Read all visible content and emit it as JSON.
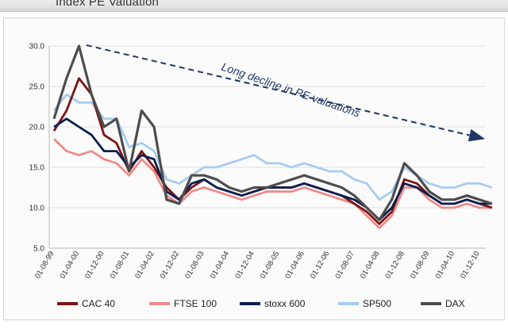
{
  "page_title": "Index PE Valuation",
  "chart_data": {
    "type": "line",
    "title": "Index PE Valuation",
    "xlabel": "",
    "ylabel": "",
    "ylim": [
      5,
      30
    ],
    "yticks": [
      "30.0",
      "25.0",
      "20.0",
      "15.0",
      "10.0",
      "5.0"
    ],
    "x_tick_labels": [
      "01-08-99",
      "01-04-00",
      "01-12-00",
      "01-08-01",
      "01-04-02",
      "01-12-02",
      "01-08-03",
      "01-04-04",
      "01-12-04",
      "01-08-05",
      "01-04-06",
      "01-12-06",
      "01-08-07",
      "01-04-08",
      "01-12-08",
      "01-08-09",
      "01-04-10",
      "01-12-10"
    ],
    "x": [
      0,
      0.5,
      1,
      1.5,
      2,
      2.5,
      3,
      3.5,
      4,
      4.5,
      5,
      5.5,
      6,
      6.5,
      7,
      7.5,
      8,
      8.5,
      9,
      9.5,
      10,
      10.5,
      11,
      11.5,
      12,
      12.5,
      13,
      13.5,
      14,
      14.5,
      15,
      15.5,
      16,
      16.5,
      17,
      17.5
    ],
    "grid": true,
    "legend_position": "bottom",
    "annotation": "Long decline in PE valuations",
    "series": [
      {
        "name": "CAC 40",
        "color": "#7b1416",
        "values": [
          19.5,
          22,
          26,
          24,
          19,
          18,
          14.5,
          17,
          15,
          12.5,
          11,
          12.5,
          13.5,
          12.5,
          12,
          11.5,
          12,
          12.5,
          12.5,
          12.5,
          13,
          12.5,
          12,
          11.5,
          10.5,
          9.5,
          8,
          9.5,
          13.5,
          13,
          11.5,
          10.5,
          10.5,
          11,
          10.5,
          10
        ]
      },
      {
        "name": "FTSE 100",
        "color": "#f08a8a",
        "values": [
          18.5,
          17,
          16.5,
          17,
          16,
          15.5,
          14,
          16,
          14.5,
          11.5,
          10.5,
          12,
          12.5,
          12,
          11.5,
          11,
          11.5,
          12,
          12,
          12,
          12.5,
          12,
          11.5,
          11,
          10.5,
          9,
          7.5,
          9,
          12.5,
          12.5,
          11,
          10,
          10,
          10.5,
          10,
          10
        ]
      },
      {
        "name": "stoxx 600",
        "color": "#0b1f4f",
        "values": [
          20,
          21,
          20,
          19,
          17,
          17,
          15,
          16.5,
          16,
          12,
          11,
          13,
          13.5,
          12.5,
          12,
          11.5,
          12,
          12.5,
          12.5,
          12.5,
          13,
          12.5,
          12,
          11.5,
          11,
          10,
          8.5,
          10,
          13,
          12.5,
          11.5,
          10.5,
          10.5,
          11,
          10.5,
          10.5
        ]
      },
      {
        "name": "SP500",
        "color": "#a8ccf0",
        "values": [
          22,
          24,
          23,
          23,
          21,
          21,
          17.5,
          18,
          17,
          13.5,
          13,
          14,
          15,
          15,
          15.5,
          16,
          16.5,
          15.5,
          15.5,
          15,
          15.5,
          15,
          14.5,
          14.5,
          13.5,
          13,
          11,
          12,
          15,
          14,
          13,
          12.5,
          12.5,
          13,
          13,
          12.5
        ]
      },
      {
        "name": "DAX",
        "color": "#4d4d4d",
        "values": [
          21,
          26,
          30,
          24,
          20,
          21,
          14.5,
          22,
          20,
          11,
          10.5,
          14,
          14,
          13.5,
          12.5,
          12,
          12.5,
          12.5,
          13,
          13.5,
          14,
          13.5,
          13,
          12.5,
          11.5,
          10,
          8.5,
          11,
          15.5,
          14,
          12,
          11,
          11,
          11.5,
          11,
          10.5
        ]
      }
    ]
  }
}
